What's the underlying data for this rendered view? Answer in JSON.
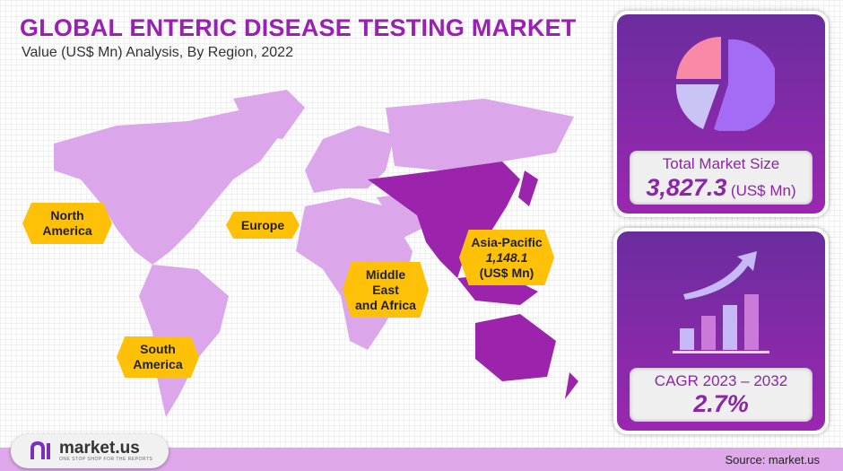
{
  "header": {
    "title": "GLOBAL ENTERIC DISEASE TESTING MARKET",
    "subtitle": "Value (US$ Mn) Analysis, By Region, 2022"
  },
  "regions": [
    {
      "name_line1": "North",
      "name_line2": "America"
    },
    {
      "name_line1": "Europe"
    },
    {
      "name_line1": "Middle",
      "name_line2": "East",
      "name_line3": "and Africa"
    },
    {
      "name_line1": "Asia-Pacific",
      "value": "1,148.1",
      "unit": "(US$ Mn)"
    },
    {
      "name_line1": "South",
      "name_line2": "America"
    }
  ],
  "highlight_region": "Asia-Pacific",
  "colors": {
    "map_base": "#dba6ea",
    "map_highlight": "#9c23ab",
    "label_bg": "#ffc107",
    "title": "#9b1fb5"
  },
  "market_size": {
    "label": "Total Market Size",
    "value": "3,827.3",
    "unit": "(US$ Mn)",
    "icon": "pie-chart-icon"
  },
  "cagr": {
    "label": "CAGR 2023 – 2032",
    "value": "2.7%",
    "icon": "growth-chart-icon"
  },
  "footer": {
    "logo_text": "market.us",
    "logo_tagline": "ONE STOP SHOP FOR THE REPORTS",
    "source": "Source: market.us"
  }
}
